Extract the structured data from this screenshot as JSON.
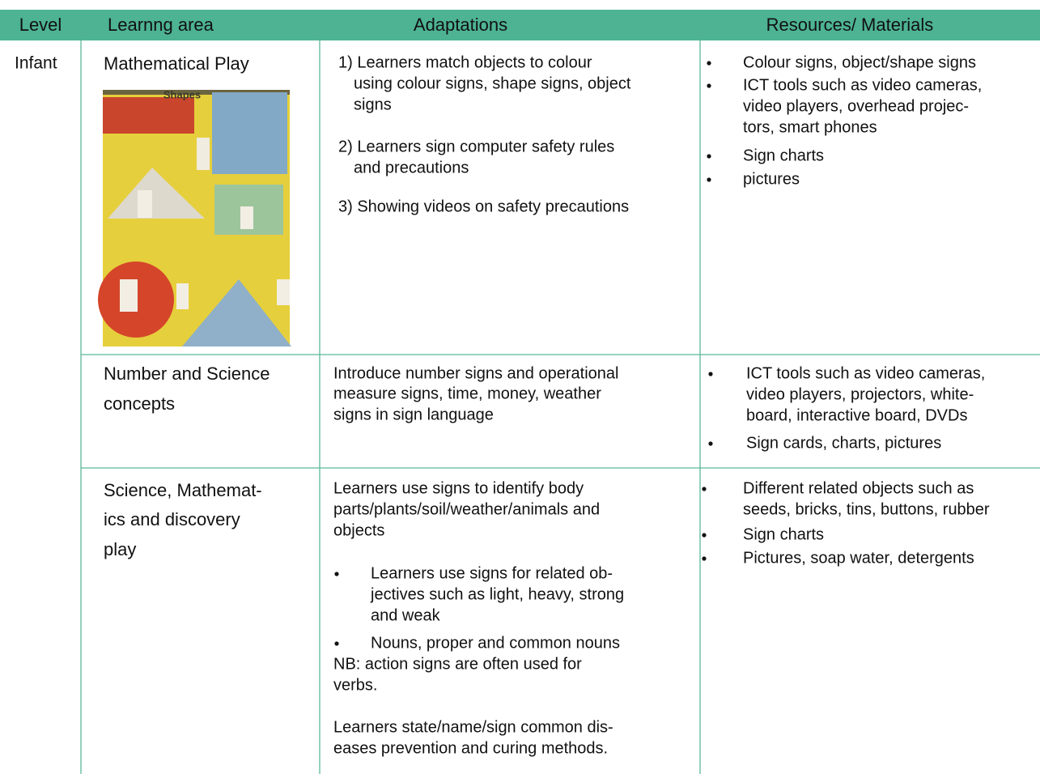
{
  "table": {
    "header": [
      "Level",
      "Learnng area",
      "Adaptations",
      "Resources/ Materials"
    ],
    "level": "Infant",
    "rows": [
      {
        "area": [
          "Mathematical Play"
        ],
        "image_text": "Shapes",
        "adaptations": [
          {
            "lines": [
              "1) Learners match objects to colour",
              "using colour signs, shape signs, object",
              "signs"
            ]
          },
          {
            "lines": [
              "2) Learners sign computer safety rules",
              "and precautions"
            ]
          },
          {
            "lines": [
              "3) Showing videos on safety precautions"
            ]
          }
        ],
        "resources": [
          [
            "Colour signs, object/shape signs"
          ],
          [
            "ICT tools such as video cameras,",
            "video players, overhead projec-",
            "tors, smart phones"
          ],
          [
            "Sign charts"
          ],
          [
            "pictures"
          ]
        ]
      },
      {
        "area": [
          "Number and Science",
          "concepts"
        ],
        "adaptations": [
          {
            "lines": [
              "Introduce number signs and operational",
              "measure signs, time, money, weather",
              "signs in sign language"
            ]
          }
        ],
        "resources": [
          [
            "ICT tools such as video cameras,",
            "video players, projectors, white-",
            "board, interactive board, DVDs"
          ],
          [
            "Sign cards, charts, pictures"
          ]
        ]
      },
      {
        "area": [
          "Science, Mathemat-",
          "ics and discovery",
          "play"
        ],
        "adaptations": [
          {
            "lines": [
              "Learners use signs to identify body",
              "parts/plants/soil/weather/animals and",
              "objects"
            ]
          },
          {
            "lines": [
              "Learners use signs for related ob-",
              "jectives such as light, heavy, strong",
              "and weak"
            ],
            "bullet": true
          },
          {
            "lines": [
              "Nouns, proper and common nouns"
            ],
            "bullet": true
          },
          {
            "lines": [
              "NB: action signs are often used for",
              "verbs."
            ]
          },
          {
            "lines": [
              "Learners state/name/sign common dis-",
              "eases prevention and curing methods."
            ]
          }
        ],
        "resources": [
          [
            "Different related objects such as",
            "seeds, bricks, tins, buttons, rubber"
          ],
          [
            "Sign charts"
          ],
          [
            "Pictures, soap water, detergents"
          ]
        ]
      }
    ]
  }
}
